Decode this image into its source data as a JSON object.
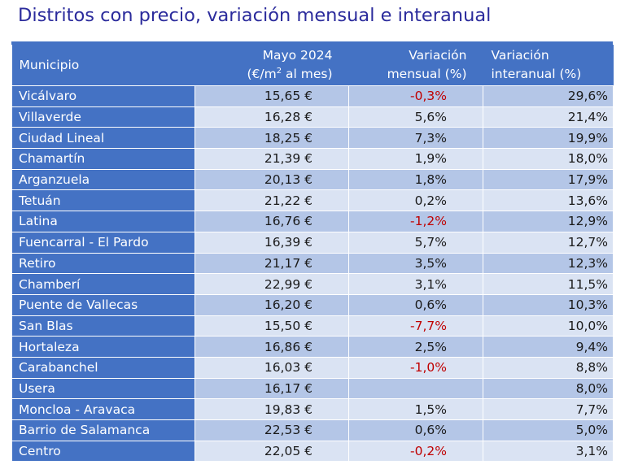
{
  "title": "Distritos con precio, variación mensual e interanual",
  "colors": {
    "header_bg": "#4472c4",
    "row_odd": "#b4c6e7",
    "row_even": "#dae3f3",
    "negative": "#c00000",
    "title": "#2b2b9c"
  },
  "header": {
    "municipio": "Municipio",
    "precio_line1": "Mayo 2024",
    "precio_line2_pre": "(€/m",
    "precio_line2_sup": "2",
    "precio_line2_post": " al mes)",
    "mensual_line1": "Variación",
    "mensual_line2": "mensual (%)",
    "interanual_line1": "Variación",
    "interanual_line2": "interanual (%)"
  },
  "rows": [
    {
      "municipio": "Vicálvaro",
      "precio": "15,65 €",
      "mensual": "-0,3%",
      "interanual": "29,6%"
    },
    {
      "municipio": "Villaverde",
      "precio": "16,28 €",
      "mensual": "5,6%",
      "interanual": "21,4%"
    },
    {
      "municipio": "Ciudad Lineal",
      "precio": "18,25 €",
      "mensual": "7,3%",
      "interanual": "19,9%"
    },
    {
      "municipio": "Chamartín",
      "precio": "21,39 €",
      "mensual": "1,9%",
      "interanual": "18,0%"
    },
    {
      "municipio": "Arganzuela",
      "precio": "20,13 €",
      "mensual": "1,8%",
      "interanual": "17,9%"
    },
    {
      "municipio": "Tetuán",
      "precio": "21,22 €",
      "mensual": "0,2%",
      "interanual": "13,6%"
    },
    {
      "municipio": "Latina",
      "precio": "16,76 €",
      "mensual": "-1,2%",
      "interanual": "12,9%"
    },
    {
      "municipio": "Fuencarral - El Pardo",
      "precio": "16,39 €",
      "mensual": "5,7%",
      "interanual": "12,7%"
    },
    {
      "municipio": "Retiro",
      "precio": "21,17 €",
      "mensual": "3,5%",
      "interanual": "12,3%"
    },
    {
      "municipio": "Chamberí",
      "precio": "22,99 €",
      "mensual": "3,1%",
      "interanual": "11,5%"
    },
    {
      "municipio": "Puente de Vallecas",
      "precio": "16,20 €",
      "mensual": "0,6%",
      "interanual": "10,3%"
    },
    {
      "municipio": "San Blas",
      "precio": "15,50 €",
      "mensual": "-7,7%",
      "interanual": "10,0%"
    },
    {
      "municipio": "Hortaleza",
      "precio": "16,86 €",
      "mensual": "2,5%",
      "interanual": "9,4%"
    },
    {
      "municipio": "Carabanchel",
      "precio": "16,03 €",
      "mensual": "-1,0%",
      "interanual": "8,8%"
    },
    {
      "municipio": "Usera",
      "precio": "16,17 €",
      "mensual": "",
      "interanual": "8,0%"
    },
    {
      "municipio": "Moncloa - Aravaca",
      "precio": "19,83 €",
      "mensual": "1,5%",
      "interanual": "7,7%"
    },
    {
      "municipio": "Barrio de Salamanca",
      "precio": "22,53 €",
      "mensual": "0,6%",
      "interanual": "5,0%"
    },
    {
      "municipio": "Centro",
      "precio": "22,05 €",
      "mensual": "-0,2%",
      "interanual": "3,1%"
    }
  ]
}
